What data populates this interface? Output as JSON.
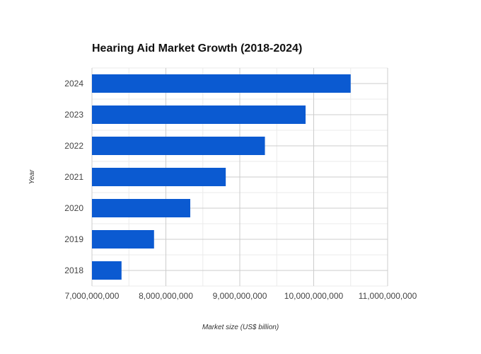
{
  "chart_data": {
    "type": "bar",
    "orientation": "horizontal",
    "title": "Hearing Aid Market Growth (2018-2024)",
    "xlabel": "Market size (US$ billion)",
    "ylabel": "Year",
    "categories": [
      "2018",
      "2019",
      "2020",
      "2021",
      "2022",
      "2023",
      "2024"
    ],
    "values": [
      7400000000,
      7840000000,
      8330000000,
      8810000000,
      9340000000,
      9890000000,
      10500000000
    ],
    "xlim": [
      7000000000,
      11000000000
    ],
    "x_ticks": [
      7000000000,
      8000000000,
      9000000000,
      10000000000,
      11000000000
    ],
    "x_tick_labels": [
      "7,000,000,000",
      "8,000,000,000",
      "9,000,000,000",
      "10,000,000,000",
      "11,000,000,000"
    ],
    "grid": true,
    "legend": "none",
    "bar_color": "#0b5ad1"
  }
}
